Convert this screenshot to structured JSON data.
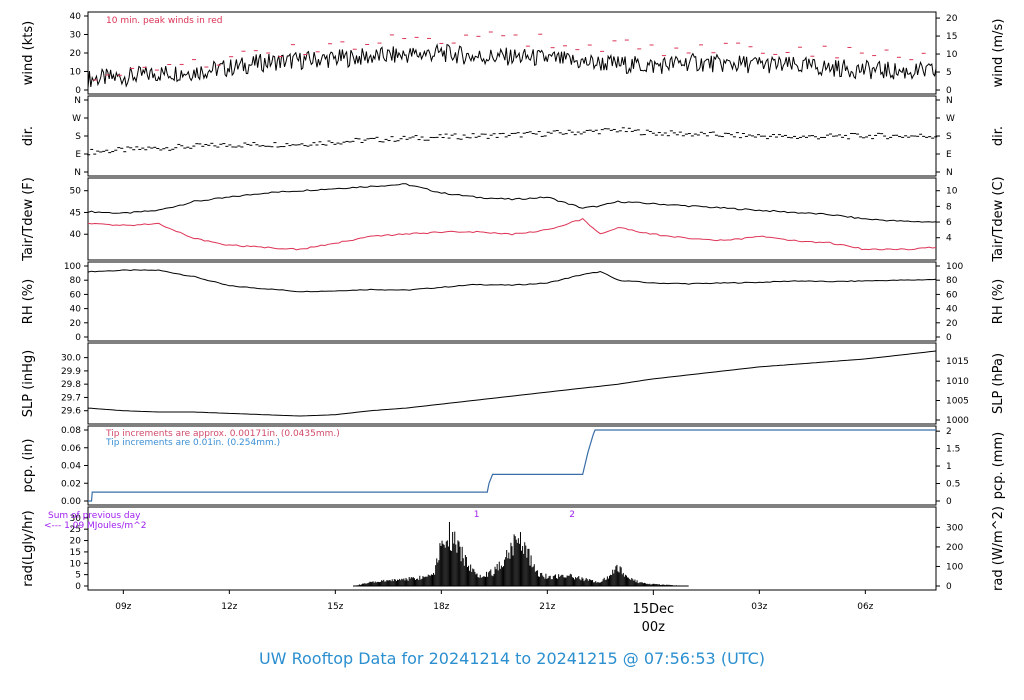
{
  "title": "UW Rooftop Data for 20241214  to  20241215 @ 07:56:53  (UTC)",
  "colors": {
    "series": "#000000",
    "peak": "#dd3355",
    "dewpoint": "#dd3355",
    "pcp_line": "#3a6ea8",
    "pcp_note_red": "#d14b6a",
    "pcp_note_blue": "#3b8fd4",
    "rad_note": "#a020f0",
    "date_label": "#dd3355",
    "title": "#2b8fd0"
  },
  "chart_data": {
    "type": "line",
    "time_axis": {
      "range": [
        "08z",
        "08z"
      ],
      "tick_labels": [
        "09z",
        "12z",
        "15z",
        "18z",
        "21z",
        "03z",
        "06z"
      ],
      "tick_hours": [
        1,
        4,
        7,
        10,
        13,
        19,
        22
      ],
      "date_label": "15Dec",
      "date_label_hour": "00z",
      "date_hour": 16
    },
    "panels": [
      {
        "id": "wind",
        "ylabel_left": "wind (kts)",
        "ylabel_right": "wind (m/s)",
        "ylim": [
          0,
          40
        ],
        "ticks_left": [
          0,
          10,
          20,
          30,
          40
        ],
        "ticks_right": [
          "0",
          "5",
          "10",
          "15",
          "20"
        ],
        "right_tick_values": [
          0,
          9.72,
          19.44,
          29.16,
          38.88
        ],
        "annotation": "10 min. peak winds in red",
        "series": [
          {
            "name": "wind speed",
            "hours": [
              0,
              1,
              2,
              3,
              4,
              5,
              6,
              7,
              8,
              9,
              10,
              11,
              12,
              13,
              14,
              15,
              16,
              17,
              18,
              19,
              20,
              21,
              22,
              23,
              24
            ],
            "values": [
              6,
              7,
              9,
              10,
              12,
              15,
              16,
              17,
              18,
              19,
              20,
              18,
              18,
              17,
              15,
              14,
              13,
              15,
              14,
              14,
              13,
              12,
              11,
              10,
              10
            ]
          },
          {
            "name": "10 min. peak winds",
            "hours": [
              0,
              2,
              4,
              6,
              8,
              10,
              12,
              14,
              16,
              18,
              20,
              22,
              24
            ],
            "values": [
              9,
              13,
              17,
              22,
              25,
              28,
              28,
              25,
              22,
              22,
              21,
              19,
              18
            ]
          }
        ]
      },
      {
        "id": "dir",
        "ylabel_left": "dir.",
        "ylabel_right": "dir.",
        "tick_labels": [
          "N",
          "W",
          "S",
          "E",
          "N"
        ],
        "tick_values": [
          360,
          270,
          180,
          90,
          0
        ],
        "series": [
          {
            "name": "wind direction",
            "hours": [
              0,
              2,
              4,
              6,
              8,
              10,
              12,
              14,
              15,
              16,
              18,
              20,
              22,
              24
            ],
            "values": [
              100,
              120,
              135,
              140,
              160,
              175,
              185,
              200,
              210,
              195,
              185,
              175,
              180,
              180
            ]
          }
        ]
      },
      {
        "id": "temp",
        "ylabel_left": "Tair/Tdew (F)",
        "ylabel_right": "Tair/Tdew (C)",
        "ylim": [
          35,
          52
        ],
        "ticks_left": [
          40,
          45,
          50
        ],
        "ticks_right": [
          "4",
          "6",
          "8",
          "10"
        ],
        "right_tick_values": [
          39.2,
          42.8,
          46.4,
          50
        ],
        "series": [
          {
            "name": "Tair",
            "hours": [
              0,
              1,
              2,
              3,
              4,
              5,
              6,
              7,
              8,
              9,
              10,
              11,
              12,
              13,
              14,
              14.5,
              15,
              16,
              17,
              18,
              19,
              20,
              21,
              22,
              23,
              24
            ],
            "values": [
              45.2,
              44.8,
              45.5,
              47.5,
              48.5,
              49.5,
              50.0,
              50.5,
              51.0,
              51.5,
              49.5,
              48.5,
              48.0,
              48.5,
              46.0,
              46.5,
              47.5,
              47.0,
              46.5,
              46.0,
              45.5,
              45.0,
              44.5,
              43.5,
              43.0,
              42.8
            ]
          },
          {
            "name": "Tdew",
            "hours": [
              0,
              1,
              2,
              3,
              4,
              5,
              6,
              7,
              8,
              9,
              10,
              11,
              12,
              13,
              14,
              14.5,
              15,
              16,
              17,
              18,
              19,
              20,
              21,
              22,
              23,
              24
            ],
            "values": [
              42.5,
              42.0,
              42.5,
              39.0,
              37.5,
              37.0,
              36.5,
              38.0,
              39.5,
              40.0,
              40.5,
              40.5,
              40.0,
              41.0,
              43.5,
              40.0,
              41.5,
              40.0,
              39.0,
              38.5,
              39.5,
              38.5,
              38.0,
              36.5,
              36.5,
              37.0
            ]
          }
        ]
      },
      {
        "id": "rh",
        "ylabel_left": "RH (%)",
        "ylabel_right": "RH (%)",
        "ylim": [
          0,
          100
        ],
        "ticks_left": [
          0,
          20,
          40,
          60,
          80,
          100
        ],
        "ticks_right": [
          "0",
          "20",
          "40",
          "60",
          "80",
          "100"
        ],
        "right_tick_values": [
          0,
          20,
          40,
          60,
          80,
          100
        ],
        "series": [
          {
            "name": "RH",
            "hours": [
              0,
              1,
              2,
              3,
              4,
              5,
              6,
              7,
              8,
              9,
              10,
              11,
              12,
              13,
              14,
              14.5,
              15,
              16,
              17,
              18,
              19,
              20,
              21,
              22,
              23,
              24
            ],
            "values": [
              92,
              94,
              94,
              85,
              72,
              68,
              64,
              65,
              67,
              66,
              70,
              74,
              73,
              76,
              88,
              92,
              80,
              76,
              75,
              76,
              77,
              79,
              78,
              79,
              80,
              81
            ]
          }
        ]
      },
      {
        "id": "slp",
        "ylabel_left": "SLP (inHg)",
        "ylabel_right": "SLP (hPa)",
        "ylim": [
          29.53,
          30.08
        ],
        "ticks_left": [
          29.6,
          29.7,
          29.8,
          29.9,
          30.0
        ],
        "tick_labels_left": [
          "29.6",
          "29.7",
          "29.8",
          "29.9",
          "30.0"
        ],
        "ticks_right": [
          "1000",
          "1005",
          "1010",
          "1015"
        ],
        "right_tick_values": [
          29.53,
          29.677,
          29.825,
          29.973
        ],
        "series": [
          {
            "name": "SLP",
            "hours": [
              0,
              1,
              2,
              3,
              4,
              5,
              6,
              7,
              8,
              9,
              10,
              11,
              12,
              13,
              14,
              15,
              16,
              17,
              18,
              19,
              20,
              21,
              22,
              23,
              24
            ],
            "values": [
              29.62,
              29.6,
              29.59,
              29.59,
              29.58,
              29.57,
              29.56,
              29.57,
              29.6,
              29.62,
              29.65,
              29.68,
              29.71,
              29.74,
              29.77,
              29.8,
              29.84,
              29.87,
              29.9,
              29.93,
              29.95,
              29.97,
              29.99,
              30.02,
              30.05
            ]
          }
        ]
      },
      {
        "id": "pcp",
        "ylabel_left": "pcp. (in)",
        "ylabel_right": "pcp. (mm)",
        "ylim": [
          0,
          0.08
        ],
        "ticks_left": [
          0.0,
          0.02,
          0.04,
          0.06,
          0.08
        ],
        "tick_labels_left": [
          "0.00",
          "0.02",
          "0.04",
          "0.06",
          "0.08"
        ],
        "ticks_right": [
          "0",
          "0.5",
          "1",
          "1.5",
          "2"
        ],
        "right_tick_values": [
          0,
          0.0197,
          0.0394,
          0.0591,
          0.0787
        ],
        "notes": [
          "Tip increments are approx. 0.00171in. (0.0435mm.)",
          "Tip increments are 0.01in. (0.254mm.)"
        ],
        "series": [
          {
            "name": "accumulated precipitation",
            "hours": [
              0,
              0.1,
              0.12,
              11.3,
              11.35,
              11.45,
              14.0,
              14.15,
              14.3,
              14.35,
              24
            ],
            "values": [
              0,
              0,
              0.01,
              0.01,
              0.02,
              0.03,
              0.03,
              0.055,
              0.075,
              0.08,
              0.08
            ]
          }
        ]
      },
      {
        "id": "rad",
        "ylabel_left": "rad(Lgly/hr)",
        "ylabel_right": "rad (W/m^2)",
        "ylim": [
          0,
          33
        ],
        "ticks_left": [
          0,
          5,
          10,
          15,
          20,
          25,
          30
        ],
        "ticks_right": [
          "0",
          "100",
          "200",
          "300"
        ],
        "right_tick_values": [
          0,
          8.6,
          17.2,
          25.8
        ],
        "note_lines": [
          "Sum of previous day",
          "<--- 1.09 MJoules/m^2"
        ],
        "markers": [
          {
            "label": "1",
            "hour": 11.0
          },
          {
            "label": "2",
            "hour": 13.7
          }
        ],
        "series": [
          {
            "name": "solar radiation",
            "hours": [
              7.5,
              8,
              8.5,
              9,
              9.5,
              9.8,
              10.0,
              10.2,
              10.5,
              11,
              11.5,
              12.0,
              12.2,
              12.4,
              12.7,
              13,
              13.5,
              14,
              14.5,
              15,
              15.3,
              15.6,
              16,
              16.5,
              17
            ],
            "values": [
              0,
              2,
              3,
              4,
              5,
              8,
              25,
              30,
              20,
              6,
              8,
              22,
              30,
              20,
              8,
              5,
              6,
              4,
              2,
              10,
              5,
              2,
              1,
              0.5,
              0
            ]
          }
        ]
      }
    ]
  }
}
